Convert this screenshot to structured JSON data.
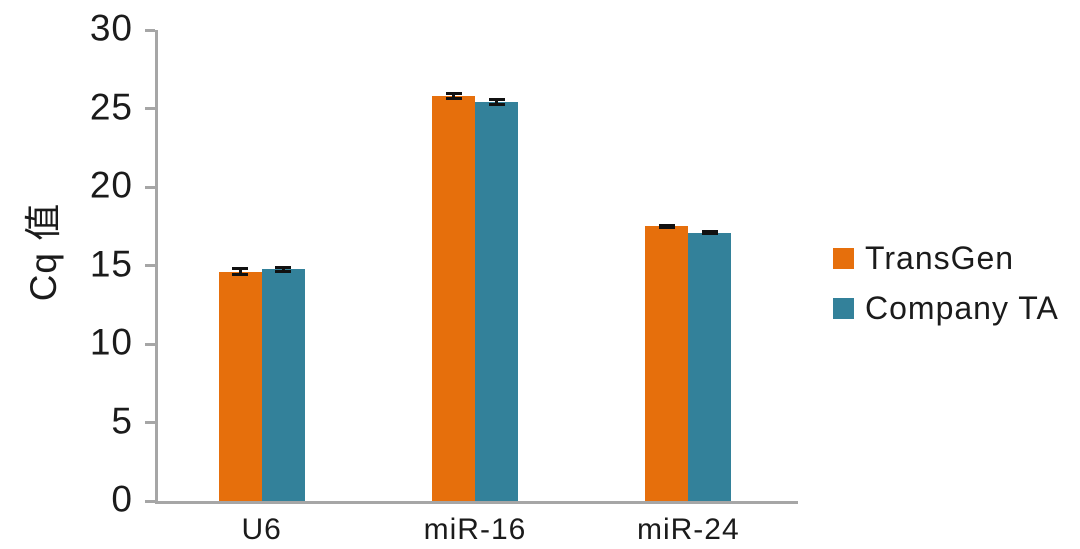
{
  "chart_data": {
    "type": "bar",
    "title": "",
    "xlabel": "",
    "ylabel": "Cq 值",
    "categories": [
      "U6",
      "miR-16",
      "miR-24"
    ],
    "series": [
      {
        "name": "TransGen",
        "color": "#E66F0C",
        "values": [
          14.6,
          25.8,
          17.5
        ],
        "errors": [
          0.28,
          0.25,
          0.15
        ]
      },
      {
        "name": "Company TA",
        "color": "#33819A",
        "values": [
          14.75,
          25.4,
          17.1
        ],
        "errors": [
          0.25,
          0.25,
          0.15
        ]
      }
    ],
    "ylim": [
      0,
      30
    ],
    "yticks": [
      0,
      5,
      10,
      15,
      20,
      25,
      30
    ],
    "grid": false,
    "legend_position": "right-middle",
    "error_bars": true
  },
  "colors": {
    "axis": "#a6a6a6",
    "text": "#1b1b1b",
    "error_bar": "#111111",
    "background": "#ffffff"
  }
}
